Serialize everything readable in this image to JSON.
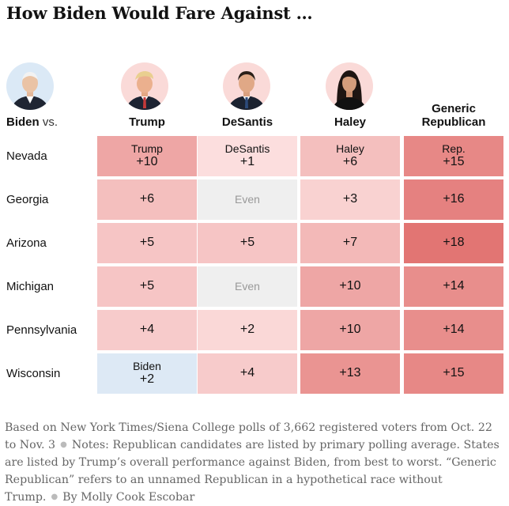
{
  "title": "How Biden Would Fare Against …",
  "header": {
    "biden": "Biden",
    "vs": "vs.",
    "columns": [
      {
        "label": "Trump",
        "label_line2": ""
      },
      {
        "label": "DeSantis",
        "label_line2": ""
      },
      {
        "label": "Haley",
        "label_line2": ""
      },
      {
        "label": "Generic",
        "label_line2": "Republican"
      }
    ]
  },
  "chart_data": {
    "type": "table",
    "title": "How Biden Would Fare Against …",
    "columns": [
      "Trump",
      "DeSantis",
      "Haley",
      "Generic Republican"
    ],
    "rows": [
      {
        "state": "Nevada",
        "cells": [
          {
            "name": "Trump",
            "text": "+10",
            "leader": "R",
            "margin": 10
          },
          {
            "name": "DeSantis",
            "text": "+1",
            "leader": "R",
            "margin": 1
          },
          {
            "name": "Haley",
            "text": "+6",
            "leader": "R",
            "margin": 6
          },
          {
            "name": "Rep.",
            "text": "+15",
            "leader": "R",
            "margin": 15
          }
        ]
      },
      {
        "state": "Georgia",
        "cells": [
          {
            "name": "",
            "text": "+6",
            "leader": "R",
            "margin": 6
          },
          {
            "name": "",
            "text": "Even",
            "leader": "E",
            "margin": 0
          },
          {
            "name": "",
            "text": "+3",
            "leader": "R",
            "margin": 3
          },
          {
            "name": "",
            "text": "+16",
            "leader": "R",
            "margin": 16
          }
        ]
      },
      {
        "state": "Arizona",
        "cells": [
          {
            "name": "",
            "text": "+5",
            "leader": "R",
            "margin": 5
          },
          {
            "name": "",
            "text": "+5",
            "leader": "R",
            "margin": 5
          },
          {
            "name": "",
            "text": "+7",
            "leader": "R",
            "margin": 7
          },
          {
            "name": "",
            "text": "+18",
            "leader": "R",
            "margin": 18
          }
        ]
      },
      {
        "state": "Michigan",
        "cells": [
          {
            "name": "",
            "text": "+5",
            "leader": "R",
            "margin": 5
          },
          {
            "name": "",
            "text": "Even",
            "leader": "E",
            "margin": 0
          },
          {
            "name": "",
            "text": "+10",
            "leader": "R",
            "margin": 10
          },
          {
            "name": "",
            "text": "+14",
            "leader": "R",
            "margin": 14
          }
        ]
      },
      {
        "state": "Pennsylvania",
        "cells": [
          {
            "name": "",
            "text": "+4",
            "leader": "R",
            "margin": 4
          },
          {
            "name": "",
            "text": "+2",
            "leader": "R",
            "margin": 2
          },
          {
            "name": "",
            "text": "+10",
            "leader": "R",
            "margin": 10
          },
          {
            "name": "",
            "text": "+14",
            "leader": "R",
            "margin": 14
          }
        ]
      },
      {
        "state": "Wisconsin",
        "cells": [
          {
            "name": "Biden",
            "text": "+2",
            "leader": "D",
            "margin": 2
          },
          {
            "name": "",
            "text": "+4",
            "leader": "R",
            "margin": 4
          },
          {
            "name": "",
            "text": "+13",
            "leader": "R",
            "margin": 13
          },
          {
            "name": "",
            "text": "+15",
            "leader": "R",
            "margin": 15
          }
        ]
      }
    ]
  },
  "notes": {
    "source": "Based on New York Times/Siena College polls of 3,662 registered voters from Oct. 22 to Nov. 3",
    "notes": "Notes: Republican candidates are listed by primary polling average. States are listed by Trump’s overall performance against Biden, from best to worst. “Generic Republican” refers to an unnamed Republican in a hypothetical race without Trump.",
    "byline": "By Molly Cook Escobar"
  },
  "colors": {
    "even": "#efefef",
    "dem": "#dde9f5",
    "rep_max": "#e27573",
    "rep_min": "#fde4e4"
  }
}
